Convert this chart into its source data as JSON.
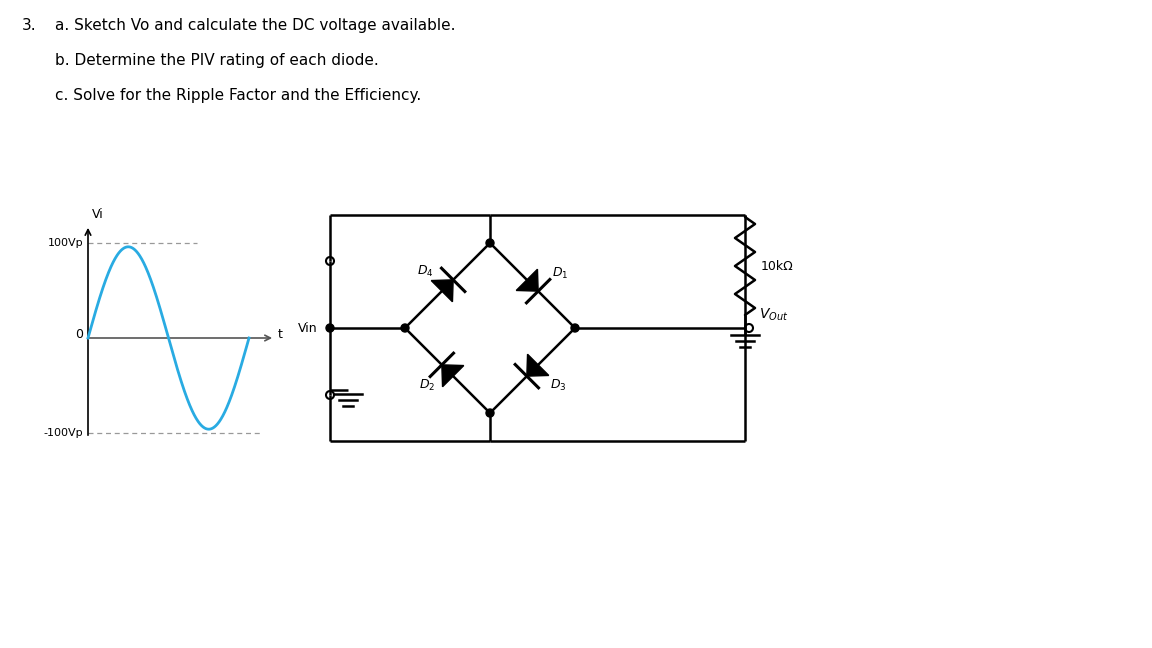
{
  "title_number": "3.",
  "question_a": "a. Sketch Vo and calculate the DC voltage available.",
  "question_b": "b. Determine the PIV rating of each diode.",
  "question_c": "c. Solve for the Ripple Factor and the Efficiency.",
  "bg_color": "#ffffff",
  "sine_color": "#29abe2",
  "line_color": "#000000",
  "text_color": "#000000",
  "vi_label": "Vi",
  "vin_label": "Vin",
  "vout_label": "V",
  "vout_sub": "Out",
  "v100_label": "100Vp",
  "v_neg100_label": "-100Vp",
  "t_label": "t",
  "zero_label": "0",
  "d1_label": "D",
  "d1_sub": "1",
  "d2_label": "D",
  "d2_sub": "2",
  "d3_label": "D",
  "d3_sub": "3",
  "d4_label": "D",
  "d4_sub": "4",
  "resistor_label": "10kΩ",
  "font_size_questions": 11,
  "font_size_labels": 9,
  "font_size_circuit": 9
}
